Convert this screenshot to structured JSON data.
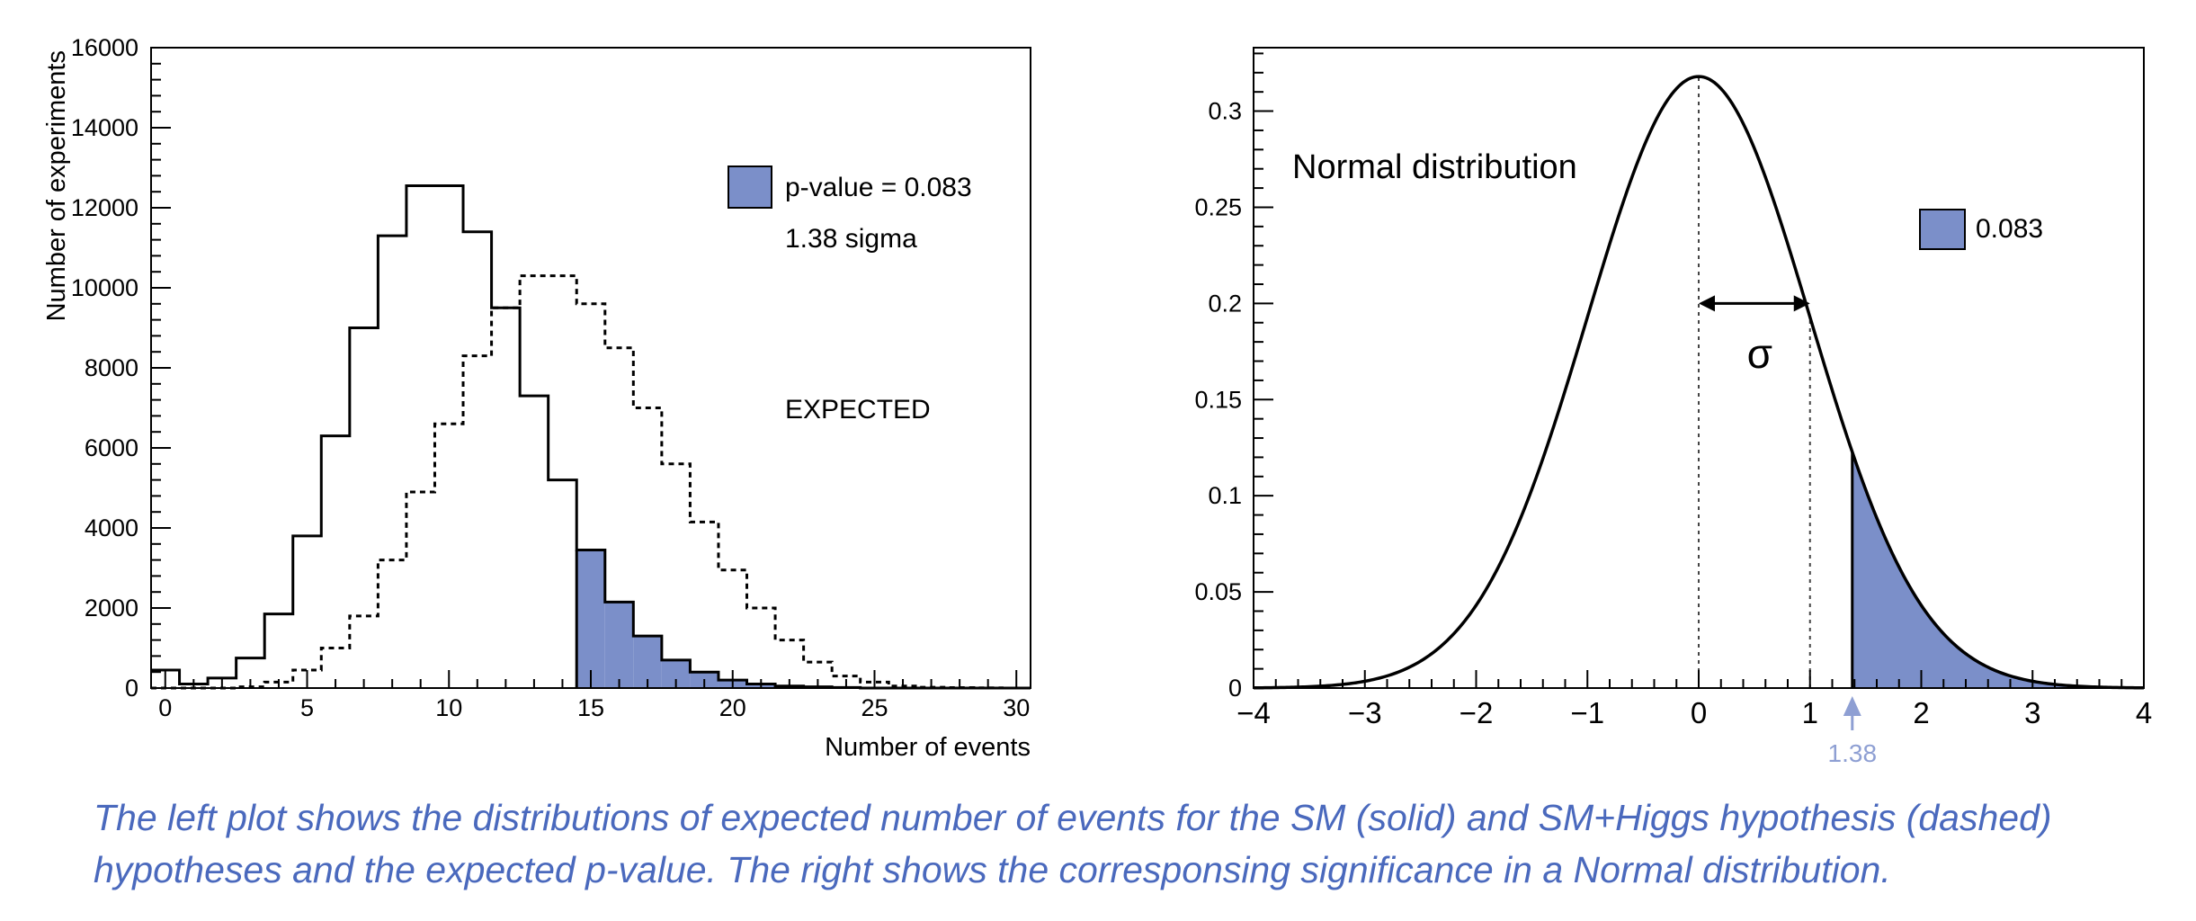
{
  "chart_data": [
    {
      "type": "bar",
      "subtype": "step-histogram",
      "title": "",
      "xlabel": "Number of events",
      "ylabel": "Number of experiments",
      "xlim": [
        -0.5,
        30.5
      ],
      "ylim": [
        0,
        16000
      ],
      "xticks": [
        0,
        5,
        10,
        15,
        20,
        25,
        30
      ],
      "yticks": [
        0,
        2000,
        4000,
        6000,
        8000,
        10000,
        12000,
        14000,
        16000
      ],
      "bin_width": 1,
      "x": [
        0,
        1,
        2,
        3,
        4,
        5,
        6,
        7,
        8,
        9,
        10,
        11,
        12,
        13,
        14,
        15,
        16,
        17,
        18,
        19,
        20,
        21,
        22,
        23,
        24,
        25,
        26,
        27,
        28,
        29,
        30
      ],
      "series": [
        {
          "name": "SM (solid)",
          "style": "solid",
          "values": [
            450,
            100,
            250,
            750,
            1850,
            3800,
            6300,
            9000,
            11300,
            12550,
            12550,
            11400,
            9500,
            7300,
            5200,
            3450,
            2150,
            1300,
            700,
            400,
            200,
            100,
            50,
            30,
            15,
            0,
            0,
            0,
            0,
            0,
            0
          ]
        },
        {
          "name": "SM+Higgs hypothesis (dashed)",
          "style": "dashed",
          "values": [
            0,
            0,
            0,
            30,
            150,
            450,
            1000,
            1800,
            3200,
            4900,
            6600,
            8300,
            9500,
            10300,
            10300,
            9600,
            8500,
            7000,
            5600,
            4150,
            2950,
            2000,
            1200,
            650,
            300,
            150,
            50,
            20,
            10,
            5,
            0
          ]
        }
      ],
      "shaded_from_bin": 15,
      "legend": {
        "label": "p-value = 0.083",
        "sublabel": "1.38 sigma",
        "color": "#7b8fc9",
        "position": "top-right"
      },
      "annotation": "EXPECTED"
    },
    {
      "type": "line",
      "title": "Normal distribution",
      "xlim": [
        -4,
        4
      ],
      "ylim": [
        0,
        0.333
      ],
      "xticks": [
        -4,
        -3,
        -2,
        -1,
        0,
        1,
        2,
        3,
        4
      ],
      "xtick_labels": [
        "−4",
        "−3",
        "−2",
        "−1",
        "0",
        "1",
        "2",
        "3",
        "4"
      ],
      "yticks": [
        0,
        0.05,
        0.1,
        0.15,
        0.2,
        0.25,
        0.3
      ],
      "ytick_labels": [
        "0",
        "0.05",
        "0.1",
        "0.15",
        "0.2",
        "0.25",
        "0.3"
      ],
      "curve": {
        "name": "normal pdf",
        "mean": 0,
        "sigma": 1,
        "scale": 0.318
      },
      "vlines": [
        0,
        1
      ],
      "sigma_symbol": "σ",
      "shaded_from": 1.38,
      "marker": {
        "value": 1.38,
        "label": "1.38"
      },
      "legend": {
        "label": "0.083",
        "color": "#7b8fc9",
        "position": "top-right"
      }
    }
  ],
  "caption": {
    "line1": "The left plot shows the distributions of expected number of events for the SM (solid) and SM+Higgs hypothesis (dashed)",
    "line2": "hypotheses and the expected p-value. The right shows the corresponsing significance in a Normal distribution."
  },
  "colors": {
    "fill": "#7b8fc9",
    "caption": "#4a69bd",
    "marker": "#8e9fd3"
  }
}
